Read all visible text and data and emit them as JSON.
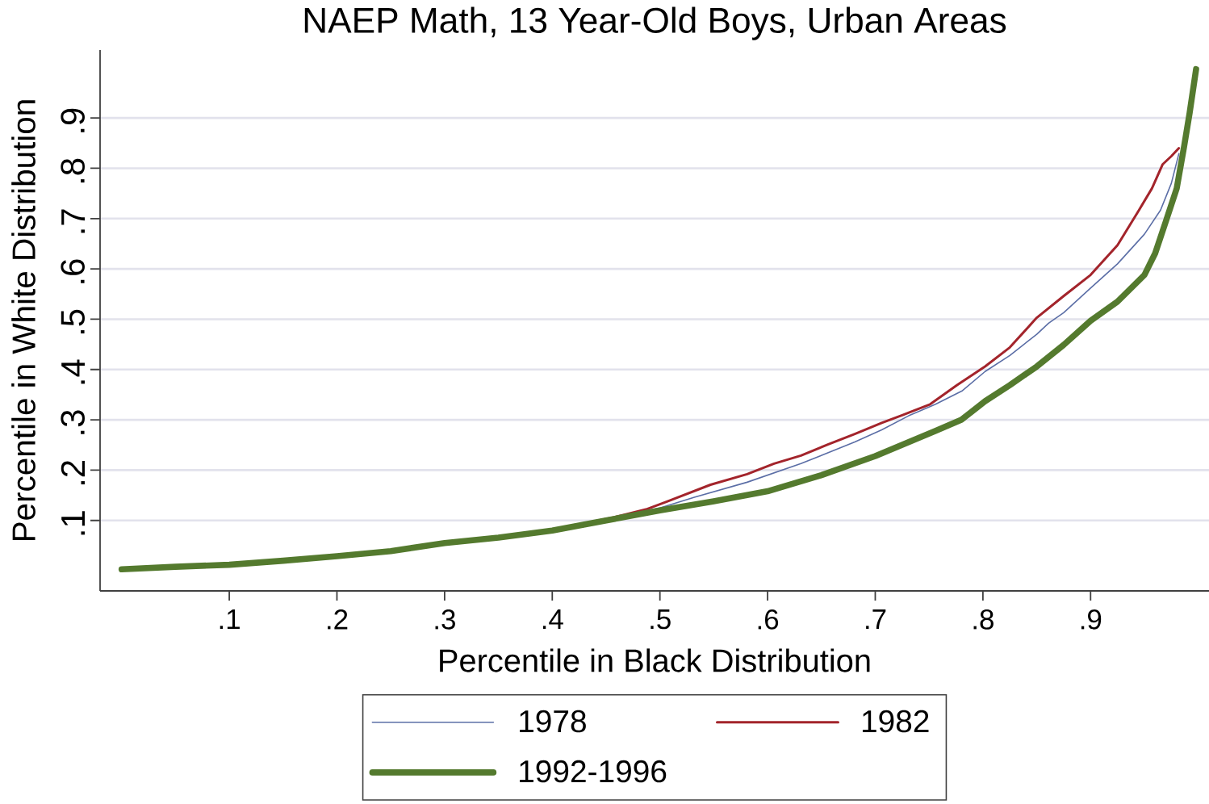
{
  "chart_data": {
    "type": "line",
    "title": "NAEP Math, 13 Year-Old Boys, Urban Areas",
    "xlabel": "Percentile in Black Distribution",
    "ylabel": "Percentile in White Distribution",
    "xlim": [
      -0.02,
      1.01
    ],
    "ylim": [
      -0.04,
      1.035
    ],
    "xticks": [
      {
        "value": 0.1,
        "label": ".1"
      },
      {
        "value": 0.2,
        "label": ".2"
      },
      {
        "value": 0.3,
        "label": ".3"
      },
      {
        "value": 0.4,
        "label": ".4"
      },
      {
        "value": 0.5,
        "label": ".5"
      },
      {
        "value": 0.6,
        "label": ".6"
      },
      {
        "value": 0.7,
        "label": ".7"
      },
      {
        "value": 0.8,
        "label": ".8"
      },
      {
        "value": 0.9,
        "label": ".9"
      }
    ],
    "yticks": [
      {
        "value": 0.1,
        "label": ".1"
      },
      {
        "value": 0.2,
        "label": ".2"
      },
      {
        "value": 0.3,
        "label": ".3"
      },
      {
        "value": 0.4,
        "label": ".4"
      },
      {
        "value": 0.5,
        "label": ".5"
      },
      {
        "value": 0.6,
        "label": ".6"
      },
      {
        "value": 0.7,
        "label": ".7"
      },
      {
        "value": 0.8,
        "label": ".8"
      },
      {
        "value": 0.9,
        "label": ".9"
      }
    ],
    "grid": "y",
    "legend": "bottom",
    "series": [
      {
        "name": "1978",
        "color": "#5b6ea6",
        "x": [
          0.45,
          0.5,
          0.532,
          0.581,
          0.631,
          0.681,
          0.706,
          0.731,
          0.756,
          0.781,
          0.802,
          0.825,
          0.85,
          0.861,
          0.875,
          0.9,
          0.925,
          0.95,
          0.965,
          0.975,
          0.982
        ],
        "values": [
          0.102,
          0.125,
          0.146,
          0.176,
          0.213,
          0.256,
          0.28,
          0.308,
          0.331,
          0.358,
          0.396,
          0.428,
          0.47,
          0.492,
          0.513,
          0.562,
          0.61,
          0.669,
          0.717,
          0.77,
          0.829
        ]
      },
      {
        "name": "1982",
        "color": "#a3242b",
        "x": [
          0.4,
          0.457,
          0.487,
          0.507,
          0.547,
          0.581,
          0.606,
          0.631,
          0.656,
          0.681,
          0.706,
          0.726,
          0.751,
          0.776,
          0.802,
          0.825,
          0.85,
          0.875,
          0.9,
          0.925,
          0.945,
          0.957,
          0.967,
          0.975,
          0.982
        ],
        "values": [
          0.081,
          0.106,
          0.122,
          0.138,
          0.171,
          0.192,
          0.213,
          0.229,
          0.251,
          0.272,
          0.294,
          0.31,
          0.331,
          0.369,
          0.406,
          0.444,
          0.503,
          0.546,
          0.588,
          0.647,
          0.717,
          0.76,
          0.808,
          0.824,
          0.84
        ]
      },
      {
        "name": "1992-1996",
        "color": "#547a2e",
        "x": [
          0,
          0.05,
          0.1,
          0.15,
          0.2,
          0.25,
          0.3,
          0.35,
          0.4,
          0.45,
          0.5,
          0.55,
          0.6,
          0.65,
          0.7,
          0.73,
          0.756,
          0.78,
          0.802,
          0.825,
          0.85,
          0.875,
          0.9,
          0.925,
          0.95,
          0.96,
          0.97,
          0.98,
          0.987,
          0.992,
          0.998
        ],
        "values": [
          0.003,
          0.008,
          0.012,
          0.02,
          0.029,
          0.039,
          0.055,
          0.066,
          0.08,
          0.1,
          0.12,
          0.138,
          0.158,
          0.19,
          0.228,
          0.255,
          0.278,
          0.3,
          0.337,
          0.369,
          0.406,
          0.449,
          0.497,
          0.535,
          0.588,
          0.631,
          0.695,
          0.76,
          0.845,
          0.91,
          0.997
        ]
      }
    ]
  }
}
